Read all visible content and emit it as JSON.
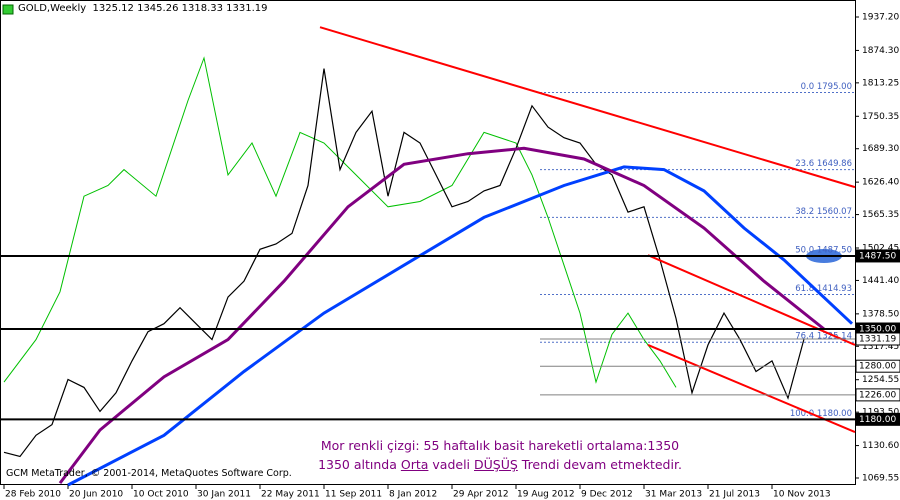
{
  "header": {
    "symbol": "GOLD,Weekly",
    "open": 1325.12,
    "high": 1345.26,
    "low": 1318.33,
    "close": 1331.19
  },
  "copyright": "GCM MetaTrader, © 2001-2014, MetaQuotes Software Corp.",
  "annotation": {
    "line1": "Mor renkli çizgi: 55 haftalık basit hareketli ortalama:1350",
    "line2_parts": [
      "1350 altında ",
      "Orta",
      " vadeli ",
      "DÜŞÜŞ",
      " Trendi devam etmektedir."
    ]
  },
  "chart_data": {
    "type": "line",
    "xlim": [
      -1,
      212.75
    ],
    "ylim": [
      1056.4,
      1969.2
    ],
    "xticks": [
      {
        "value": 0,
        "label": "28 Feb 2010"
      },
      {
        "value": 16,
        "label": "20 Jun 2010"
      },
      {
        "value": 32,
        "label": "10 Oct 2010"
      },
      {
        "value": 48,
        "label": "30 Jan 2011"
      },
      {
        "value": 64,
        "label": "22 May 2011"
      },
      {
        "value": 80,
        "label": "11 Sep 2011"
      },
      {
        "value": 96,
        "label": "8 Jan 2012"
      },
      {
        "value": 112,
        "label": "29 Apr 2012"
      },
      {
        "value": 128,
        "label": "19 Aug 2012"
      },
      {
        "value": 144,
        "label": "9 Dec 2012"
      },
      {
        "value": 160,
        "label": "31 Mar 2013"
      },
      {
        "value": 176,
        "label": "21 Jul 2013"
      },
      {
        "value": 192,
        "label": "10 Nov 2013"
      }
    ],
    "yticks": [
      {
        "value": 1937.2,
        "label": "1937.20"
      },
      {
        "value": 1874.3,
        "label": "1874.30"
      },
      {
        "value": 1813.25,
        "label": "1813.25"
      },
      {
        "value": 1750.35,
        "label": "1750.35"
      },
      {
        "value": 1689.3,
        "label": "1689.30"
      },
      {
        "value": 1626.4,
        "label": "1626.40"
      },
      {
        "value": 1565.35,
        "label": "1565.35"
      },
      {
        "value": 1502.45,
        "label": "1502.45"
      },
      {
        "value": 1441.4,
        "label": "1441.40"
      },
      {
        "value": 1378.5,
        "label": "1378.50"
      },
      {
        "value": 1317.45,
        "label": "1317.45"
      },
      {
        "value": 1254.55,
        "label": "1254.55"
      },
      {
        "value": 1193.5,
        "label": "1193.50"
      },
      {
        "value": 1130.6,
        "label": "1130.60"
      },
      {
        "value": 1069.55,
        "label": "1069.55"
      }
    ],
    "series": [
      {
        "color": "#00c000",
        "width": 1,
        "x": [
          0,
          8,
          14,
          20,
          26,
          30,
          38,
          46,
          50,
          56,
          62,
          68,
          74,
          80,
          88,
          96,
          104,
          112,
          120,
          128,
          132,
          136,
          140,
          144,
          148,
          152,
          156,
          160,
          164,
          168
        ],
        "values": [
          1250,
          1330,
          1420,
          1600,
          1620,
          1650,
          1600,
          1780,
          1860,
          1640,
          1700,
          1600,
          1720,
          1700,
          1640,
          1580,
          1590,
          1620,
          1720,
          1700,
          1640,
          1560,
          1470,
          1380,
          1250,
          1340,
          1380,
          1330,
          1290,
          1240
        ]
      },
      {
        "color": "#000000",
        "width": 1.2,
        "x": [
          0,
          4,
          8,
          12,
          16,
          20,
          24,
          28,
          32,
          36,
          40,
          44,
          48,
          52,
          56,
          60,
          64,
          68,
          72,
          76,
          80,
          84,
          88,
          92,
          96,
          100,
          104,
          108,
          112,
          116,
          120,
          124,
          128,
          132,
          136,
          140,
          144,
          148,
          152,
          156,
          160,
          164,
          168,
          172,
          176,
          180,
          184,
          188,
          192,
          196,
          200
        ],
        "values": [
          1118,
          1110,
          1150,
          1170,
          1255,
          1240,
          1195,
          1230,
          1290,
          1345,
          1360,
          1390,
          1360,
          1330,
          1410,
          1440,
          1500,
          1510,
          1530,
          1620,
          1840,
          1650,
          1720,
          1760,
          1600,
          1720,
          1700,
          1640,
          1580,
          1590,
          1610,
          1620,
          1690,
          1770,
          1730,
          1710,
          1700,
          1660,
          1640,
          1570,
          1580,
          1480,
          1370,
          1230,
          1320,
          1380,
          1330,
          1270,
          1290,
          1220,
          1331.19
        ]
      },
      {
        "color": "#0040ff",
        "width": 3,
        "x": [
          16,
          40,
          60,
          80,
          100,
          120,
          140,
          155,
          165,
          175,
          185,
          195,
          212
        ],
        "values": [
          1056.4,
          1150,
          1270,
          1380,
          1470,
          1560,
          1620,
          1655,
          1650,
          1610,
          1540,
          1480,
          1360
        ]
      },
      {
        "color": "#800080",
        "width": 3,
        "x": [
          14,
          24,
          40,
          56,
          70,
          86,
          100,
          116,
          130,
          145,
          160,
          175,
          190,
          205
        ],
        "values": [
          1060,
          1160,
          1260,
          1330,
          1440,
          1580,
          1660,
          1680,
          1690,
          1670,
          1620,
          1540,
          1440,
          1350
        ]
      }
    ],
    "trendlines": [
      {
        "color": "#ff0000",
        "x": [
          79,
          212.75
        ],
        "y": [
          1918,
          1617
        ]
      },
      {
        "color": "#ff0000",
        "x": [
          161,
          212.75
        ],
        "y": [
          1489,
          1320
        ]
      },
      {
        "color": "#ff0000",
        "x": [
          161,
          212.75
        ],
        "y": [
          1320,
          1156
        ]
      }
    ],
    "levels": [
      {
        "value": 1487.5,
        "label": "1487.50",
        "emphasis": true
      },
      {
        "value": 1350,
        "label": "1350.00",
        "emphasis": true
      },
      {
        "value": 1331.19,
        "label": "1331.19",
        "emphasis": false
      },
      {
        "value": 1280,
        "label": "1280.00",
        "emphasis": false
      },
      {
        "value": 1226,
        "label": "1226.00",
        "emphasis": false
      },
      {
        "value": 1180,
        "label": "1180.00",
        "emphasis": true
      }
    ],
    "fib": [
      {
        "value": 1795,
        "label": "0.0 1795.00"
      },
      {
        "value": 1649.86,
        "label": "23.6 1649.86"
      },
      {
        "value": 1560.07,
        "label": "38.2 1560.07"
      },
      {
        "value": 1487.5,
        "label": "50.0 1487.50"
      },
      {
        "value": 1414.93,
        "label": "61.8 1414.93"
      },
      {
        "value": 1325.14,
        "label": "76.4 1325.14"
      },
      {
        "value": 1180,
        "label": "100.0 1180.00"
      }
    ]
  }
}
